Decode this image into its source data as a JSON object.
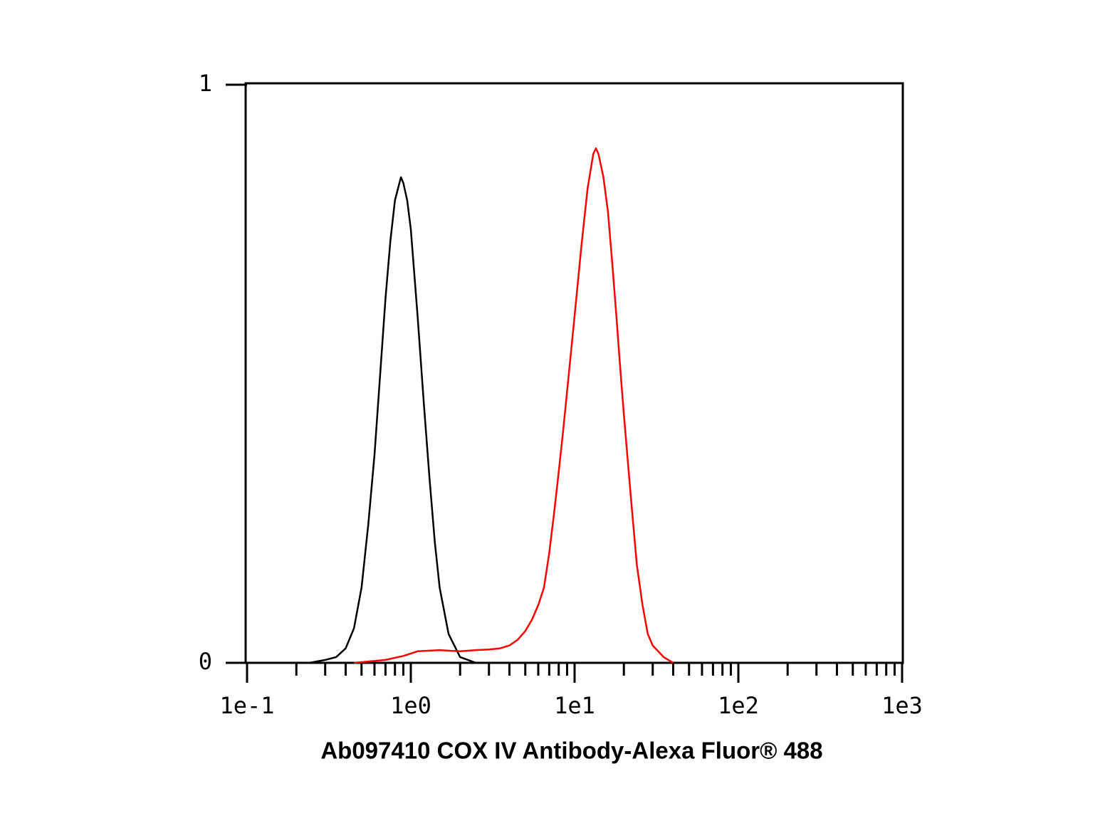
{
  "chart_data": {
    "type": "line",
    "log_x": true,
    "xlabel": "Ab097410 COX IV Antibody-Alexa Fluor® 488",
    "xlim": [
      0.1,
      1000
    ],
    "xticks": [
      {
        "value": 0.1,
        "label": "1e-1"
      },
      {
        "value": 1,
        "label": "1e0"
      },
      {
        "value": 10,
        "label": "1e1"
      },
      {
        "value": 100,
        "label": "1e2"
      },
      {
        "value": 1000,
        "label": "1e3"
      }
    ],
    "x_minor_ticks": [
      0.2,
      0.3,
      0.4,
      0.5,
      0.6,
      0.7,
      0.8,
      0.9,
      2,
      3,
      4,
      5,
      6,
      7,
      8,
      9,
      20,
      30,
      40,
      50,
      60,
      70,
      80,
      90,
      200,
      300,
      400,
      500,
      600,
      700,
      800,
      900
    ],
    "ylim": [
      0,
      1
    ],
    "yticks": [
      0,
      1
    ],
    "series": [
      {
        "color": "#000000",
        "x": [
          0.24,
          0.3,
          0.35,
          0.4,
          0.45,
          0.5,
          0.55,
          0.6,
          0.65,
          0.7,
          0.75,
          0.8,
          0.87,
          0.9,
          0.95,
          1.0,
          1.1,
          1.2,
          1.3,
          1.4,
          1.5,
          1.7,
          2.0,
          2.5
        ],
        "values": [
          0,
          0.005,
          0.01,
          0.025,
          0.06,
          0.13,
          0.24,
          0.36,
          0.5,
          0.63,
          0.73,
          0.8,
          0.84,
          0.83,
          0.8,
          0.75,
          0.6,
          0.45,
          0.32,
          0.21,
          0.13,
          0.05,
          0.01,
          0
        ]
      },
      {
        "color": "#ff0000",
        "x": [
          0.45,
          0.7,
          0.9,
          1.1,
          1.5,
          2,
          2.5,
          3,
          3.5,
          4,
          4.5,
          5,
          5.5,
          6,
          6.5,
          7,
          7.5,
          8,
          8.5,
          9,
          10,
          11,
          12,
          13,
          13.5,
          14,
          15,
          16,
          17,
          18,
          19,
          20,
          22,
          24,
          26,
          28,
          30,
          35,
          40
        ],
        "values": [
          0,
          0.005,
          0.012,
          0.02,
          0.022,
          0.02,
          0.022,
          0.023,
          0.025,
          0.03,
          0.04,
          0.055,
          0.075,
          0.1,
          0.13,
          0.19,
          0.26,
          0.33,
          0.4,
          0.47,
          0.6,
          0.72,
          0.82,
          0.88,
          0.89,
          0.88,
          0.84,
          0.78,
          0.69,
          0.6,
          0.51,
          0.43,
          0.29,
          0.17,
          0.1,
          0.05,
          0.03,
          0.01,
          0
        ]
      }
    ]
  }
}
